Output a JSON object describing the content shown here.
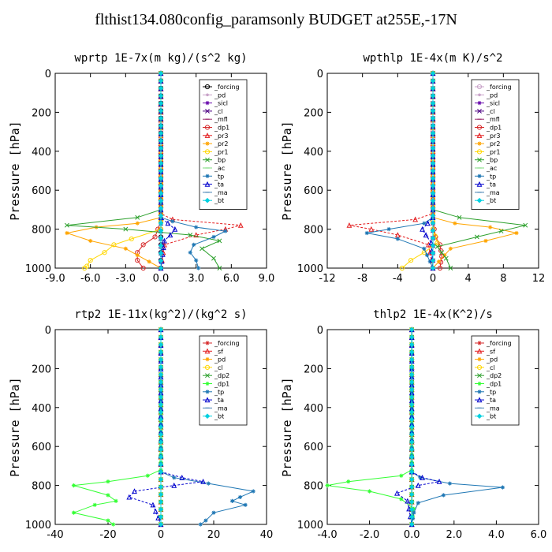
{
  "figure_title": "flthist134.080config_paramsonly  BUDGET at255E,-17N",
  "chart_data": [
    {
      "type": "line",
      "title": "wprtp  1E-7x(m kg)/(s^2 kg)",
      "ylabel": "Pressure [hPa]",
      "xlim": [
        -9,
        9
      ],
      "ylim": [
        1000,
        0
      ],
      "xticks": [
        "-9.0",
        "-6.0",
        "-3.0",
        "0.0",
        "3.0",
        "6.0",
        "9.0"
      ],
      "xtick_values": [
        -9,
        -6,
        -3,
        0,
        3,
        6,
        9
      ],
      "yticks": [
        0,
        200,
        400,
        600,
        800,
        1000
      ],
      "legend": "top-right",
      "series": [
        {
          "name": "_forcing",
          "color": "#000000",
          "marker": "circle",
          "x": [
            0,
            0,
            0,
            0
          ],
          "y": [
            0,
            500,
            800,
            1000
          ]
        },
        {
          "name": "_pd",
          "color": "#c8a2c8",
          "marker": "dot",
          "x": [
            0,
            0,
            0
          ],
          "y": [
            0,
            500,
            1000
          ]
        },
        {
          "name": "_sicl",
          "color": "#6a0dad",
          "marker": "star",
          "x": [
            0,
            0,
            0
          ],
          "y": [
            0,
            500,
            1000
          ]
        },
        {
          "name": "_cl",
          "color": "#4b0082",
          "marker": "cross",
          "x": [
            0,
            0,
            0
          ],
          "y": [
            0,
            500,
            1000
          ]
        },
        {
          "name": "_mfl",
          "color": "#9b2d6f",
          "marker": "dash",
          "x": [
            0,
            0,
            0
          ],
          "y": [
            0,
            500,
            1000
          ]
        },
        {
          "name": "_dp1",
          "color": "#d62728",
          "marker": "circle",
          "x": [
            0,
            0,
            -0.5,
            -1.5,
            -2.0,
            -2.0,
            -1.5
          ],
          "y": [
            0,
            760,
            840,
            880,
            920,
            960,
            1000
          ]
        },
        {
          "name": "_pr3",
          "color": "#e31a1c",
          "marker": "triangle",
          "x": [
            0,
            0,
            1.0,
            6.8,
            5.5,
            3.0,
            0.3,
            0
          ],
          "y": [
            0,
            720,
            750,
            780,
            800,
            830,
            880,
            1000
          ]
        },
        {
          "name": "_pr2",
          "color": "#ffa500",
          "marker": "star",
          "x": [
            0,
            0,
            -2.0,
            -5.5,
            -8.0,
            -6.0,
            -3.0,
            0
          ],
          "y": [
            0,
            740,
            770,
            790,
            820,
            860,
            900,
            1000
          ]
        },
        {
          "name": "_pr1",
          "color": "#ffd700",
          "marker": "circle",
          "x": [
            0,
            0,
            -2.5,
            -4.0,
            -4.8,
            -6.0,
            -6.3,
            -6.5
          ],
          "y": [
            0,
            800,
            850,
            880,
            920,
            960,
            990,
            1000
          ]
        },
        {
          "name": "_bp",
          "color": "#2ca02c",
          "marker": "cross",
          "x": [
            0,
            0,
            -2.0,
            -8.0,
            -3.0,
            2.5,
            5.0,
            3.5,
            4.5,
            5.0
          ],
          "y": [
            0,
            700,
            740,
            780,
            800,
            830,
            860,
            900,
            950,
            1000
          ]
        },
        {
          "name": "_ac",
          "color": "#7fdc7f",
          "marker": "dash",
          "x": [
            0,
            0,
            0,
            0
          ],
          "y": [
            0,
            500,
            900,
            1000
          ]
        },
        {
          "name": "_tp",
          "color": "#1f77b4",
          "marker": "star",
          "x": [
            0,
            0,
            1.0,
            3.0,
            5.5,
            4.5,
            2.8,
            2.5,
            3.0,
            3.2
          ],
          "y": [
            0,
            740,
            760,
            790,
            810,
            840,
            880,
            920,
            960,
            1000
          ]
        },
        {
          "name": "_ta",
          "color": "#0000cd",
          "marker": "triangle",
          "x": [
            0,
            0,
            0.6,
            1.2,
            0.8,
            0.3,
            0
          ],
          "y": [
            0,
            740,
            770,
            800,
            830,
            860,
            1000
          ]
        },
        {
          "name": "_ma",
          "color": "#4682b4",
          "marker": "dash",
          "x": [
            0,
            0,
            0,
            0
          ],
          "y": [
            0,
            500,
            900,
            1000
          ]
        },
        {
          "name": "_bt",
          "color": "#00d0e0",
          "marker": "diamond",
          "x": [
            0,
            0,
            0
          ],
          "y": [
            0,
            500,
            1000
          ]
        }
      ]
    },
    {
      "type": "line",
      "title": "wpthlp  1E-4x(m K)/s^2",
      "ylabel": "Pressure [hPa]",
      "xlim": [
        -12,
        12
      ],
      "ylim": [
        1000,
        0
      ],
      "xticks": [
        "-12",
        "-8",
        "-4",
        "0",
        "4",
        "8",
        "12"
      ],
      "xtick_values": [
        -12,
        -8,
        -4,
        0,
        4,
        8,
        12
      ],
      "yticks": [
        0,
        200,
        400,
        600,
        800,
        1000
      ],
      "legend": "top-right",
      "series": [
        {
          "name": "_forcing",
          "color": "#c8a2c8",
          "marker": "circle",
          "x": [
            0,
            0,
            0
          ],
          "y": [
            0,
            500,
            1000
          ]
        },
        {
          "name": "_pd",
          "color": "#c8a2c8",
          "marker": "dot",
          "x": [
            0,
            0,
            0
          ],
          "y": [
            0,
            500,
            1000
          ]
        },
        {
          "name": "_sicl",
          "color": "#6a0dad",
          "marker": "star",
          "x": [
            0,
            0,
            0
          ],
          "y": [
            0,
            500,
            1000
          ]
        },
        {
          "name": "_cl",
          "color": "#4b0082",
          "marker": "cross",
          "x": [
            0,
            0,
            0
          ],
          "y": [
            0,
            500,
            1000
          ]
        },
        {
          "name": "_mfl",
          "color": "#9b2d6f",
          "marker": "dash",
          "x": [
            0,
            0,
            0
          ],
          "y": [
            0,
            500,
            1000
          ]
        },
        {
          "name": "_dp1",
          "color": "#d62728",
          "marker": "circle",
          "x": [
            0,
            0,
            0.3,
            0.8,
            1.0,
            0.8
          ],
          "y": [
            0,
            760,
            840,
            880,
            940,
            1000
          ]
        },
        {
          "name": "_pr3",
          "color": "#e31a1c",
          "marker": "triangle",
          "x": [
            0,
            0,
            -2.0,
            -9.5,
            -7.0,
            -4.0,
            -0.5,
            0
          ],
          "y": [
            0,
            720,
            750,
            780,
            800,
            830,
            880,
            1000
          ]
        },
        {
          "name": "_pr2",
          "color": "#ffa500",
          "marker": "star",
          "x": [
            0,
            0,
            2.5,
            6.5,
            9.5,
            6.0,
            2.0,
            0
          ],
          "y": [
            0,
            740,
            770,
            790,
            820,
            860,
            900,
            1000
          ]
        },
        {
          "name": "_pr1",
          "color": "#ffd700",
          "marker": "circle",
          "x": [
            0,
            0,
            0.5,
            -1.0,
            -2.5,
            -3.5
          ],
          "y": [
            0,
            800,
            870,
            920,
            960,
            1000
          ]
        },
        {
          "name": "_bp",
          "color": "#2ca02c",
          "marker": "cross",
          "x": [
            0,
            0,
            3.0,
            10.5,
            5.0,
            0.5,
            1.5,
            2.0
          ],
          "y": [
            0,
            700,
            740,
            780,
            840,
            890,
            950,
            1000
          ]
        },
        {
          "name": "_ac",
          "color": "#7fdc7f",
          "marker": "dash",
          "x": [
            0,
            0,
            0
          ],
          "y": [
            0,
            500,
            1000
          ]
        },
        {
          "name": "_tp",
          "color": "#1f77b4",
          "marker": "star",
          "x": [
            0,
            0,
            -1.0,
            -5.0,
            -7.5,
            -4.0,
            -1.0,
            0
          ],
          "y": [
            0,
            740,
            770,
            800,
            820,
            850,
            900,
            1000
          ]
        },
        {
          "name": "_ta",
          "color": "#0000cd",
          "marker": "triangle",
          "x": [
            0,
            0,
            -0.6,
            -1.2,
            -0.8,
            -0.2,
            0
          ],
          "y": [
            0,
            740,
            770,
            800,
            830,
            870,
            1000
          ]
        },
        {
          "name": "_ma",
          "color": "#4682b4",
          "marker": "dash",
          "x": [
            0,
            0,
            0
          ],
          "y": [
            0,
            500,
            1000
          ]
        },
        {
          "name": "_bt",
          "color": "#00d0e0",
          "marker": "diamond",
          "x": [
            0,
            0,
            0
          ],
          "y": [
            0,
            500,
            1000
          ]
        }
      ]
    },
    {
      "type": "line",
      "title": "rtp2  1E-11x(kg^2)/(kg^2 s)",
      "ylabel": "Pressure [hPa]",
      "xlim": [
        -40,
        40
      ],
      "ylim": [
        1000,
        0
      ],
      "xticks": [
        "-40",
        "-20",
        "0",
        "20",
        "40"
      ],
      "xtick_values": [
        -40,
        -20,
        0,
        20,
        40
      ],
      "yticks": [
        0,
        200,
        400,
        600,
        800,
        1000
      ],
      "legend": "top-right",
      "series": [
        {
          "name": "_forcing",
          "color": "#d62728",
          "marker": "star",
          "x": [
            0,
            0,
            0
          ],
          "y": [
            0,
            500,
            1000
          ]
        },
        {
          "name": "_sf",
          "color": "#e31a1c",
          "marker": "triangle",
          "x": [
            0,
            0,
            0
          ],
          "y": [
            0,
            500,
            1000
          ]
        },
        {
          "name": "_pd",
          "color": "#ffa500",
          "marker": "star",
          "x": [
            0,
            0,
            0
          ],
          "y": [
            0,
            500,
            1000
          ]
        },
        {
          "name": "_cl",
          "color": "#ffd700",
          "marker": "circle",
          "x": [
            0,
            0,
            0
          ],
          "y": [
            0,
            500,
            1000
          ]
        },
        {
          "name": "_dp2",
          "color": "#2ca02c",
          "marker": "cross",
          "x": [
            0,
            0,
            0
          ],
          "y": [
            0,
            500,
            1000
          ]
        },
        {
          "name": "_dp1",
          "color": "#33ff33",
          "marker": "star",
          "x": [
            0,
            0,
            -5,
            -20,
            -33,
            -20,
            -17,
            -25,
            -33,
            -20,
            -18
          ],
          "y": [
            0,
            720,
            750,
            780,
            800,
            850,
            880,
            900,
            940,
            980,
            1000
          ]
        },
        {
          "name": "_tp",
          "color": "#1f77b4",
          "marker": "star",
          "x": [
            0,
            0,
            5,
            18,
            35,
            30,
            27,
            32,
            20,
            17,
            15
          ],
          "y": [
            0,
            730,
            760,
            790,
            830,
            860,
            880,
            900,
            940,
            980,
            1000
          ]
        },
        {
          "name": "_ta",
          "color": "#0000cd",
          "marker": "triangle",
          "x": [
            0,
            0,
            8,
            16,
            5,
            -10,
            -12,
            -3,
            0
          ],
          "y": [
            0,
            730,
            760,
            780,
            800,
            830,
            860,
            900,
            1000
          ]
        },
        {
          "name": "_ma",
          "color": "#4682b4",
          "marker": "dash",
          "x": [
            0,
            0,
            0
          ],
          "y": [
            0,
            500,
            1000
          ]
        },
        {
          "name": "_bt",
          "color": "#00d0e0",
          "marker": "diamond",
          "x": [
            0,
            0,
            0
          ],
          "y": [
            0,
            500,
            1000
          ]
        }
      ]
    },
    {
      "type": "line",
      "title": "thlp2  1E-4x(K^2)/s",
      "ylabel": "Pressure [hPa]",
      "xlim": [
        -4,
        6
      ],
      "ylim": [
        1000,
        0
      ],
      "xticks": [
        "-4.0",
        "-2.0",
        "0.0",
        "2.0",
        "4.0",
        "6.0"
      ],
      "xtick_values": [
        -4,
        -2,
        0,
        2,
        4,
        6
      ],
      "yticks": [
        0,
        200,
        400,
        600,
        800,
        1000
      ],
      "legend": "top-right",
      "series": [
        {
          "name": "_forcing",
          "color": "#d62728",
          "marker": "star",
          "x": [
            0,
            0,
            0
          ],
          "y": [
            0,
            500,
            1000
          ]
        },
        {
          "name": "_sf",
          "color": "#e31a1c",
          "marker": "triangle",
          "x": [
            0,
            0,
            0
          ],
          "y": [
            0,
            500,
            1000
          ]
        },
        {
          "name": "_pd",
          "color": "#ffa500",
          "marker": "star",
          "x": [
            0,
            0,
            0
          ],
          "y": [
            0,
            500,
            1000
          ]
        },
        {
          "name": "_cl",
          "color": "#ffd700",
          "marker": "circle",
          "x": [
            0,
            0,
            0
          ],
          "y": [
            0,
            500,
            1000
          ]
        },
        {
          "name": "_dp2",
          "color": "#2ca02c",
          "marker": "cross",
          "x": [
            0,
            0,
            0
          ],
          "y": [
            0,
            500,
            1000
          ]
        },
        {
          "name": "_dp1",
          "color": "#33ff33",
          "marker": "star",
          "x": [
            0,
            0,
            -0.5,
            -3.0,
            -4.0,
            -2.0,
            -0.5,
            0.1,
            0
          ],
          "y": [
            0,
            720,
            750,
            780,
            800,
            830,
            870,
            920,
            1000
          ]
        },
        {
          "name": "_tp",
          "color": "#1f77b4",
          "marker": "star",
          "x": [
            0,
            0,
            0.4,
            1.8,
            4.3,
            1.5,
            0.3,
            0.1,
            0
          ],
          "y": [
            0,
            730,
            760,
            790,
            810,
            850,
            890,
            940,
            1000
          ]
        },
        {
          "name": "_ta",
          "color": "#0000cd",
          "marker": "triangle",
          "x": [
            0,
            0,
            0.5,
            1.3,
            0.3,
            -0.7,
            -0.2,
            0
          ],
          "y": [
            0,
            730,
            760,
            780,
            800,
            840,
            880,
            1000
          ]
        },
        {
          "name": "_ma",
          "color": "#4682b4",
          "marker": "dash",
          "x": [
            0,
            0,
            0
          ],
          "y": [
            0,
            500,
            1000
          ]
        },
        {
          "name": "_bt",
          "color": "#00d0e0",
          "marker": "diamond",
          "x": [
            0,
            0,
            0
          ],
          "y": [
            0,
            500,
            1000
          ]
        }
      ]
    }
  ]
}
